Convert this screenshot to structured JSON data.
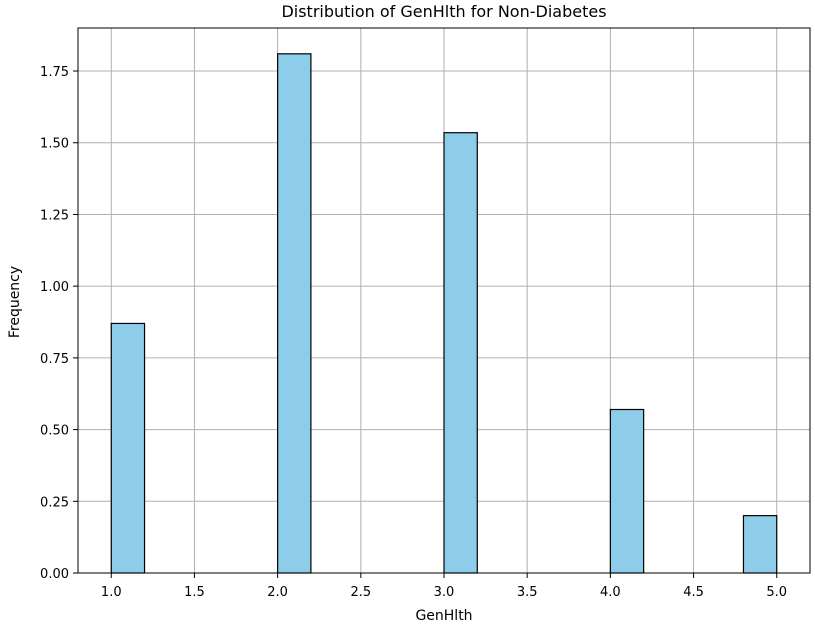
{
  "chart_data": {
    "type": "bar",
    "title": "Distribution of GenHlth for Non-Diabetes",
    "xlabel": "GenHlth",
    "ylabel": "Frequency",
    "bin_width": 0.2,
    "bins": [
      {
        "start": 1.0,
        "end": 1.2,
        "value": 0.87
      },
      {
        "start": 2.0,
        "end": 2.2,
        "value": 1.81
      },
      {
        "start": 3.0,
        "end": 3.2,
        "value": 1.535
      },
      {
        "start": 4.0,
        "end": 4.2,
        "value": 0.57
      },
      {
        "start": 4.8,
        "end": 5.0,
        "value": 0.2
      }
    ],
    "xlim": [
      0.8,
      5.2
    ],
    "ylim": [
      0,
      1.9
    ],
    "xticks": [
      1.0,
      1.5,
      2.0,
      2.5,
      3.0,
      3.5,
      4.0,
      4.5,
      5.0
    ],
    "xtick_labels": [
      "1.0",
      "1.5",
      "2.0",
      "2.5",
      "3.0",
      "3.5",
      "4.0",
      "4.5",
      "5.0"
    ],
    "yticks": [
      0.0,
      0.25,
      0.5,
      0.75,
      1.0,
      1.25,
      1.5,
      1.75
    ],
    "ytick_labels": [
      "0.00",
      "0.25",
      "0.50",
      "0.75",
      "1.00",
      "1.25",
      "1.50",
      "1.75"
    ],
    "grid": true,
    "bar_color": "#8ecdea",
    "edge_color": "#000000"
  }
}
